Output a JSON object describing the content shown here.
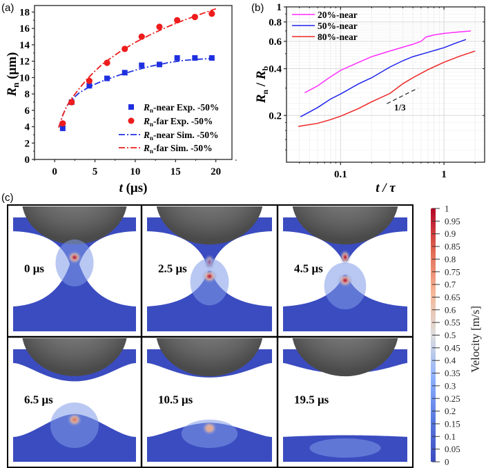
{
  "panel_labels": {
    "a": "(a)",
    "b": "(b)",
    "c": "(c)"
  },
  "chart_data": [
    {
      "id": "a",
      "type": "scatter",
      "xlabel": "t (μs)",
      "ylabel": "Rn (μm)",
      "xlim": [
        -2.5,
        22
      ],
      "ylim": [
        0,
        18.8
      ],
      "xticks": [
        0,
        5,
        10,
        15,
        20
      ],
      "yticks": [
        0,
        2,
        4,
        6,
        8,
        10,
        12,
        14,
        16,
        18
      ],
      "grid": false,
      "legend_position": "bottom-right",
      "series": [
        {
          "name": "Rn-near Exp. -50%",
          "label_main": "R",
          "label_sub": "n",
          "label_rest": "-near Exp. -50%",
          "kind": "marker-square",
          "color": "#1f2fe0",
          "x": [
            1.0,
            2.1,
            4.3,
            6.5,
            8.7,
            10.8,
            13.0,
            15.2,
            17.4,
            19.5
          ],
          "y": [
            3.8,
            7.0,
            9.0,
            9.9,
            10.6,
            11.5,
            11.6,
            12.4,
            12.4,
            12.4
          ]
        },
        {
          "name": "Rn-far Exp. -50%",
          "label_main": "R",
          "label_sub": "n",
          "label_rest": "-far    Exp. -50%",
          "kind": "marker-circle",
          "color": "#ee1c1c",
          "x": [
            1.0,
            2.1,
            4.3,
            6.5,
            8.7,
            10.8,
            13.0,
            15.2,
            17.4,
            19.5
          ],
          "y": [
            4.4,
            7.0,
            9.6,
            11.8,
            13.5,
            15.0,
            16.2,
            17.0,
            17.4,
            17.8
          ]
        },
        {
          "name": "Rn-near Sim. -50%",
          "label_main": "R",
          "label_sub": "n",
          "label_rest": "-near  Sim. -50%",
          "kind": "dashdot-line",
          "color": "#1f2fe0",
          "x": [
            0.5,
            1.0,
            1.5,
            2.0,
            3.0,
            4.0,
            5.0,
            6.0,
            8.0,
            10.0,
            12.0,
            14.0,
            16.0,
            18.0,
            20.0
          ],
          "y": [
            3.9,
            5.4,
            6.5,
            7.2,
            8.1,
            8.7,
            9.2,
            9.6,
            10.3,
            10.9,
            11.4,
            11.8,
            12.1,
            12.25,
            12.35
          ]
        },
        {
          "name": "Rn-far Sim. -50%",
          "label_main": "R",
          "label_sub": "n",
          "label_rest": "-far      Sim. -50%",
          "kind": "dashdot-line",
          "color": "#ee1c1c",
          "x": [
            0.5,
            1.0,
            1.5,
            2.0,
            3.0,
            4.0,
            5.0,
            6.0,
            8.0,
            10.0,
            12.0,
            14.0,
            16.0,
            18.0,
            20.0
          ],
          "y": [
            3.9,
            5.4,
            6.5,
            7.3,
            8.6,
            9.8,
            10.8,
            11.7,
            13.1,
            14.3,
            15.3,
            16.2,
            17.0,
            17.7,
            18.4
          ]
        }
      ]
    },
    {
      "id": "b",
      "type": "line",
      "xscale": "log",
      "yscale": "log",
      "xlabel": "t / τ",
      "ylabel": "Rn / Rb",
      "xlim": [
        0.03,
        2.47
      ],
      "ylim": [
        0.1,
        1
      ],
      "xticks": [
        0.1,
        1
      ],
      "xtick_labels": [
        "0.1",
        "1"
      ],
      "yticks": [
        0.2,
        0.4,
        0.6,
        0.8,
        1
      ],
      "ytick_labels": [
        "0.2",
        "0.4",
        "0.6",
        "0.8",
        "1"
      ],
      "grid": true,
      "legend_position": "top-left",
      "series": [
        {
          "name": "20%-near",
          "color": "#ff2cff",
          "x": [
            0.045,
            0.06,
            0.08,
            0.1,
            0.15,
            0.2,
            0.3,
            0.4,
            0.5,
            0.6,
            0.67,
            0.8,
            1.0,
            1.4,
            1.82
          ],
          "y": [
            0.28,
            0.31,
            0.355,
            0.39,
            0.44,
            0.478,
            0.52,
            0.55,
            0.575,
            0.6,
            0.64,
            0.66,
            0.675,
            0.69,
            0.7
          ]
        },
        {
          "name": "50%-near",
          "color": "#1f24ee",
          "x": [
            0.041,
            0.06,
            0.08,
            0.1,
            0.15,
            0.2,
            0.3,
            0.4,
            0.5,
            0.7,
            1.0,
            1.3,
            1.63
          ],
          "y": [
            0.196,
            0.225,
            0.255,
            0.275,
            0.32,
            0.35,
            0.41,
            0.45,
            0.478,
            0.51,
            0.546,
            0.585,
            0.617
          ]
        },
        {
          "name": "80%-near",
          "color": "#ee2424",
          "x": [
            0.039,
            0.06,
            0.08,
            0.1,
            0.15,
            0.2,
            0.3,
            0.4,
            0.5,
            0.7,
            1.0,
            1.4,
            2.0
          ],
          "y": [
            0.17,
            0.178,
            0.188,
            0.198,
            0.222,
            0.245,
            0.277,
            0.32,
            0.35,
            0.395,
            0.44,
            0.48,
            0.52
          ]
        }
      ],
      "annotation": {
        "text": "1/3",
        "slope_line_x": [
          0.28,
          0.56
        ],
        "slope_line_y": [
          0.238,
          0.3
        ]
      }
    },
    {
      "id": "c-colorbar",
      "type": "heatmap",
      "title": "Velocity [m/s]",
      "range": [
        0,
        1
      ],
      "ticks": [
        "0",
        "0.05",
        "0.1",
        "0.15",
        "0.2",
        "0.25",
        "0.3",
        "0.35",
        "0.4",
        "0.45",
        "0.5",
        "0.55",
        "0.6",
        "0.65",
        "0.7",
        "0.75",
        "0.8",
        "0.85",
        "0.9",
        "0.95",
        "1"
      ],
      "colormap": [
        "#3b4cc0",
        "#6f92f3",
        "#aac7fd",
        "#dddddd",
        "#f7b89c",
        "#e7745b",
        "#b40426"
      ]
    }
  ],
  "snapshots": [
    {
      "label": "0 μs",
      "neck_top": 0.94,
      "neck_width": 0.12,
      "bump_height": 0.95,
      "bump_width": 0.55,
      "tip_velocity": 1.0
    },
    {
      "label": "2.5 μs",
      "neck_top": 0.72,
      "neck_width": 0.35,
      "bump_height": 0.62,
      "bump_width": 0.55,
      "tip_velocity": 1.0
    },
    {
      "label": "4.5 μs",
      "neck_top": 0.62,
      "neck_width": 0.45,
      "bump_height": 0.55,
      "bump_width": 0.6,
      "tip_velocity": 0.9
    },
    {
      "label": "6.5 μs",
      "neck_top": 0.38,
      "neck_width": 0.55,
      "bump_height": 0.4,
      "bump_width": 0.7,
      "tip_velocity": 0.75
    },
    {
      "label": "10.5 μs",
      "neck_top": 0.3,
      "neck_width": 0.6,
      "bump_height": 0.25,
      "bump_width": 0.8,
      "tip_velocity": 0.6
    },
    {
      "label": "19.5 μs",
      "neck_top": 0.22,
      "neck_width": 0.65,
      "bump_height": 0.03,
      "bump_width": 1.0,
      "tip_velocity": 0.5
    }
  ]
}
